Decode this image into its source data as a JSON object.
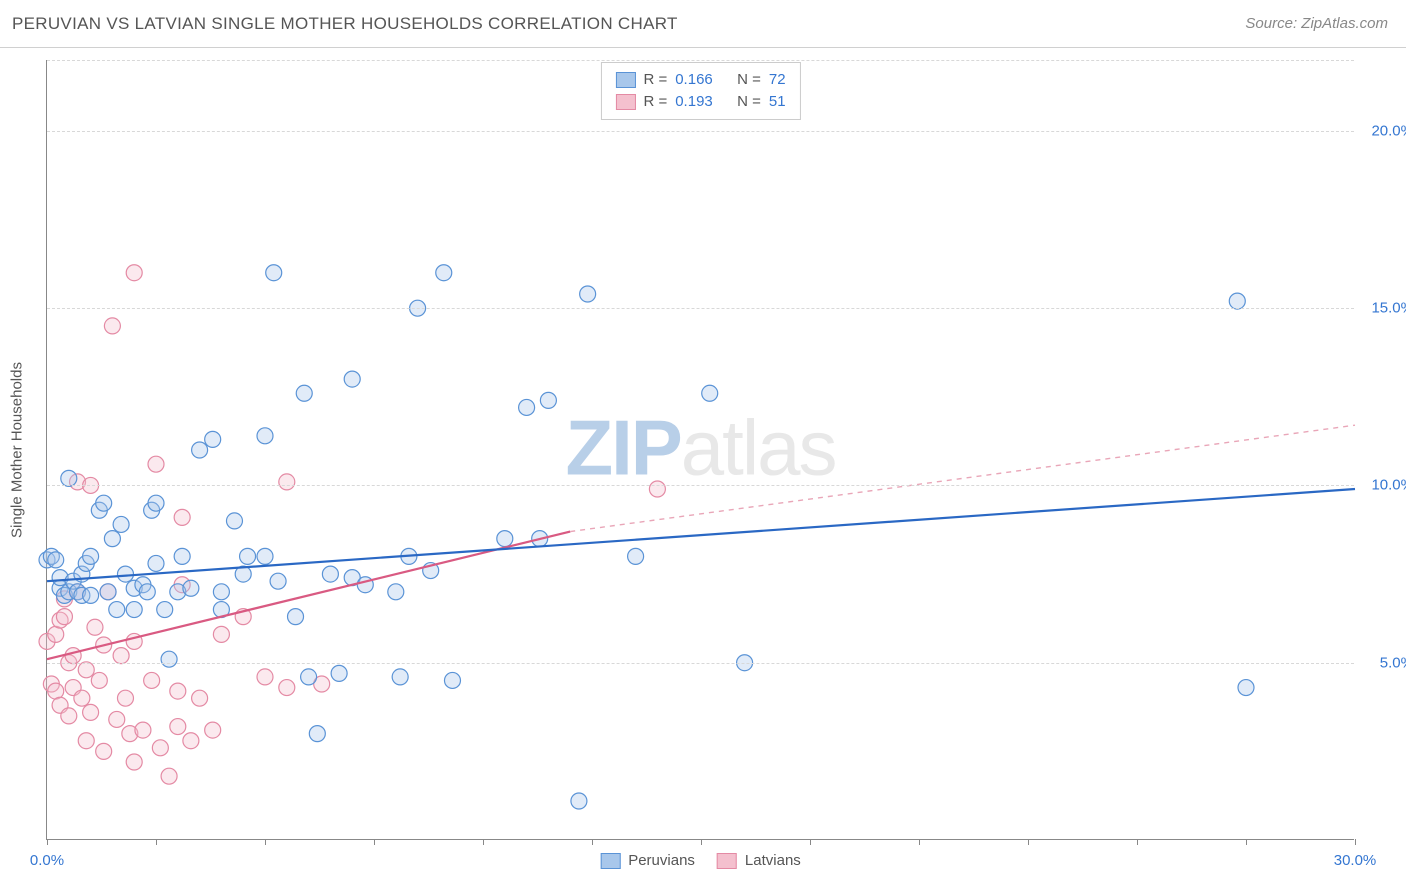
{
  "header": {
    "title": "PERUVIAN VS LATVIAN SINGLE MOTHER HOUSEHOLDS CORRELATION CHART",
    "source_prefix": "Source: ",
    "source": "ZipAtlas.com"
  },
  "watermark": {
    "bold": "ZIP",
    "light": "atlas"
  },
  "chart": {
    "type": "scatter",
    "background_color": "#ffffff",
    "grid_color": "#d8d8d8",
    "axis_color": "#888888",
    "axis_label_color": "#555555",
    "tick_label_color": "#3476d1",
    "y_axis_label": "Single Mother Households",
    "label_fontsize": 15,
    "title_fontsize": 17,
    "xlim": [
      0,
      30
    ],
    "ylim": [
      0,
      22
    ],
    "x_ticks": [
      0,
      2.5,
      5,
      7.5,
      10,
      12.5,
      15,
      17.5,
      20,
      22.5,
      25,
      27.5,
      30
    ],
    "x_tick_labels": {
      "0": "0.0%",
      "30": "30.0%"
    },
    "y_gridlines": [
      5,
      10,
      15,
      20,
      22
    ],
    "y_tick_labels": {
      "5": "5.0%",
      "10": "10.0%",
      "15": "15.0%",
      "20": "20.0%"
    },
    "point_radius": 8,
    "point_stroke_width": 1.2,
    "point_fill_opacity": 0.35,
    "series": [
      {
        "name": "Peruvians",
        "color_stroke": "#5a93d6",
        "color_fill": "#a8c7eb",
        "r_label": "R = ",
        "r_value": "0.166",
        "n_label": "N = ",
        "n_value": "72",
        "trend": {
          "x1": 0,
          "y1": 7.3,
          "x2": 30,
          "y2": 9.9,
          "color": "#2a68c4",
          "width": 2.2,
          "dash": ""
        },
        "points": [
          [
            0.0,
            7.9
          ],
          [
            0.1,
            8.0
          ],
          [
            0.3,
            7.1
          ],
          [
            0.3,
            7.4
          ],
          [
            0.4,
            6.9
          ],
          [
            0.5,
            7.0
          ],
          [
            0.5,
            10.2
          ],
          [
            0.6,
            7.3
          ],
          [
            0.7,
            7.0
          ],
          [
            0.8,
            6.9
          ],
          [
            0.8,
            7.5
          ],
          [
            0.9,
            7.8
          ],
          [
            1.0,
            8.0
          ],
          [
            1.0,
            6.9
          ],
          [
            1.2,
            9.3
          ],
          [
            1.3,
            9.5
          ],
          [
            1.4,
            7.0
          ],
          [
            1.5,
            8.5
          ],
          [
            1.6,
            6.5
          ],
          [
            1.7,
            8.9
          ],
          [
            1.8,
            7.5
          ],
          [
            2.0,
            7.1
          ],
          [
            2.0,
            6.5
          ],
          [
            2.2,
            7.2
          ],
          [
            2.3,
            7.0
          ],
          [
            2.4,
            9.3
          ],
          [
            2.5,
            9.5
          ],
          [
            2.5,
            7.8
          ],
          [
            2.7,
            6.5
          ],
          [
            2.8,
            5.1
          ],
          [
            3.0,
            7.0
          ],
          [
            3.1,
            8.0
          ],
          [
            3.3,
            7.1
          ],
          [
            3.5,
            11.0
          ],
          [
            3.8,
            11.3
          ],
          [
            4.0,
            7.0
          ],
          [
            4.0,
            6.5
          ],
          [
            4.3,
            9.0
          ],
          [
            4.5,
            7.5
          ],
          [
            4.6,
            8.0
          ],
          [
            5.0,
            8.0
          ],
          [
            5.0,
            11.4
          ],
          [
            5.2,
            16.0
          ],
          [
            5.3,
            7.3
          ],
          [
            5.7,
            6.3
          ],
          [
            5.9,
            12.6
          ],
          [
            6.0,
            4.6
          ],
          [
            6.2,
            3.0
          ],
          [
            6.5,
            7.5
          ],
          [
            6.7,
            4.7
          ],
          [
            7.0,
            7.4
          ],
          [
            7.0,
            13.0
          ],
          [
            7.3,
            7.2
          ],
          [
            8.0,
            7.0
          ],
          [
            8.1,
            4.6
          ],
          [
            8.3,
            8.0
          ],
          [
            8.5,
            15.0
          ],
          [
            8.8,
            7.6
          ],
          [
            9.1,
            16.0
          ],
          [
            9.3,
            4.5
          ],
          [
            10.5,
            8.5
          ],
          [
            11.0,
            12.2
          ],
          [
            11.3,
            8.5
          ],
          [
            11.5,
            12.4
          ],
          [
            12.2,
            1.1
          ],
          [
            12.4,
            15.4
          ],
          [
            13.5,
            8.0
          ],
          [
            15.2,
            12.6
          ],
          [
            16.0,
            5.0
          ],
          [
            27.3,
            15.2
          ],
          [
            27.5,
            4.3
          ],
          [
            0.2,
            7.9
          ]
        ]
      },
      {
        "name": "Latvians",
        "color_stroke": "#e48aa4",
        "color_fill": "#f4c0ce",
        "r_label": "R = ",
        "r_value": "0.193",
        "n_label": "N = ",
        "n_value": "51",
        "trend": {
          "x1": 0,
          "y1": 5.1,
          "x2": 12,
          "y2": 8.7,
          "color": "#d95a82",
          "width": 2.2,
          "dash": ""
        },
        "trend_ext": {
          "x1": 12,
          "y1": 8.7,
          "x2": 30,
          "y2": 11.7,
          "color": "#e9a6b8",
          "width": 1.4,
          "dash": "5,5"
        },
        "points": [
          [
            0.0,
            5.6
          ],
          [
            0.1,
            4.4
          ],
          [
            0.2,
            5.8
          ],
          [
            0.2,
            4.2
          ],
          [
            0.3,
            6.2
          ],
          [
            0.3,
            3.8
          ],
          [
            0.4,
            6.8
          ],
          [
            0.4,
            6.3
          ],
          [
            0.5,
            5.0
          ],
          [
            0.5,
            3.5
          ],
          [
            0.6,
            4.3
          ],
          [
            0.6,
            5.2
          ],
          [
            0.7,
            7.0
          ],
          [
            0.7,
            10.1
          ],
          [
            0.8,
            4.0
          ],
          [
            0.9,
            2.8
          ],
          [
            0.9,
            4.8
          ],
          [
            1.0,
            3.6
          ],
          [
            1.0,
            10.0
          ],
          [
            1.1,
            6.0
          ],
          [
            1.2,
            4.5
          ],
          [
            1.3,
            2.5
          ],
          [
            1.3,
            5.5
          ],
          [
            1.4,
            7.0
          ],
          [
            1.5,
            14.5
          ],
          [
            1.6,
            3.4
          ],
          [
            1.7,
            5.2
          ],
          [
            1.8,
            4.0
          ],
          [
            1.9,
            3.0
          ],
          [
            2.0,
            2.2
          ],
          [
            2.0,
            5.6
          ],
          [
            2.0,
            16.0
          ],
          [
            2.2,
            3.1
          ],
          [
            2.4,
            4.5
          ],
          [
            2.5,
            10.6
          ],
          [
            2.6,
            2.6
          ],
          [
            2.8,
            1.8
          ],
          [
            3.0,
            3.2
          ],
          [
            3.0,
            4.2
          ],
          [
            3.1,
            7.2
          ],
          [
            3.1,
            9.1
          ],
          [
            3.3,
            2.8
          ],
          [
            3.5,
            4.0
          ],
          [
            3.8,
            3.1
          ],
          [
            4.0,
            5.8
          ],
          [
            4.5,
            6.3
          ],
          [
            5.0,
            4.6
          ],
          [
            5.5,
            4.3
          ],
          [
            5.5,
            10.1
          ],
          [
            6.3,
            4.4
          ],
          [
            14.0,
            9.9
          ]
        ]
      }
    ],
    "legend_bottom": [
      {
        "label": "Peruvians",
        "stroke": "#5a93d6",
        "fill": "#a8c7eb"
      },
      {
        "label": "Latvians",
        "stroke": "#e48aa4",
        "fill": "#f4c0ce"
      }
    ]
  }
}
